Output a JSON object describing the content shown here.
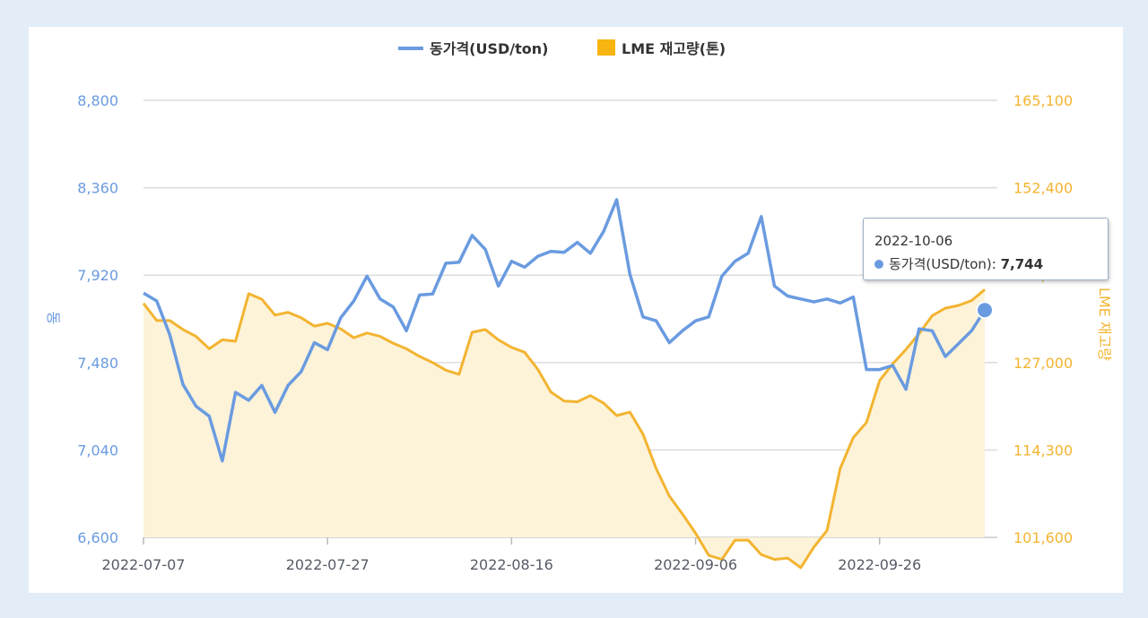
{
  "legend": {
    "series1": "동가격(USD/ton)",
    "series2": "LME 재고량(톤)"
  },
  "axes": {
    "left_label": "동",
    "right_label": "LME 재고량"
  },
  "tooltip": {
    "date": "2022-10-06",
    "series": "동가격(USD/ton)",
    "value": "7,744"
  },
  "colors": {
    "price": "#6a9be0",
    "stock": "#f3b431",
    "stock_fill": "#fdf3d9",
    "grid": "#d9d9d9",
    "background": "#e3edf8"
  },
  "chart_data": {
    "type": "line",
    "title": "",
    "x_ticks": [
      "2022-07-07",
      "2022-07-27",
      "2022-08-16",
      "2022-09-06",
      "2022-09-26"
    ],
    "y_left": {
      "ticks": [
        "8,800",
        "8,360",
        "7,920",
        "7,480",
        "7,040",
        "6,600"
      ],
      "ylim": [
        6600,
        8800
      ]
    },
    "y_right": {
      "ticks": [
        "165,100",
        "152,400",
        "139,700",
        "127,000",
        "114,300",
        "101,600"
      ],
      "ylim": [
        101600,
        165100
      ]
    },
    "grid": true,
    "legend_position": "top-center",
    "series": [
      {
        "name": "동가격(USD/ton)",
        "axis": "left",
        "type": "line",
        "values": [
          7830,
          7790,
          7620,
          7370,
          7260,
          7210,
          6985,
          7330,
          7290,
          7365,
          7230,
          7365,
          7435,
          7580,
          7545,
          7705,
          7790,
          7915,
          7800,
          7760,
          7640,
          7820,
          7825,
          7980,
          7985,
          8120,
          8050,
          7865,
          7990,
          7960,
          8015,
          8040,
          8035,
          8085,
          8030,
          8140,
          8300,
          7925,
          7710,
          7690,
          7580,
          7640,
          7690,
          7710,
          7915,
          7990,
          8030,
          8215,
          7865,
          7815,
          7800,
          7785,
          7800,
          7780,
          7810,
          7445,
          7445,
          7465,
          7345,
          7650,
          7640,
          7510,
          7575,
          7640,
          7744
        ]
      },
      {
        "name": "LME 재고량(톤)",
        "axis": "right",
        "type": "area",
        "values": [
          135600,
          133100,
          133100,
          131800,
          130800,
          129000,
          130300,
          130100,
          137000,
          136200,
          133900,
          134300,
          133500,
          132300,
          132700,
          131900,
          130600,
          131300,
          130800,
          129800,
          129000,
          127900,
          127000,
          125900,
          125300,
          131400,
          131800,
          130300,
          129200,
          128500,
          126000,
          122700,
          121400,
          121300,
          122200,
          121100,
          119300,
          119800,
          116600,
          111600,
          107600,
          105000,
          102200,
          99000,
          98400,
          101200,
          101200,
          99100,
          98400,
          98600,
          97200,
          100200,
          102600,
          111600,
          116100,
          118300,
          124400,
          126800,
          128900,
          131200,
          133800,
          134900,
          135300,
          136000,
          137600
        ]
      }
    ]
  }
}
